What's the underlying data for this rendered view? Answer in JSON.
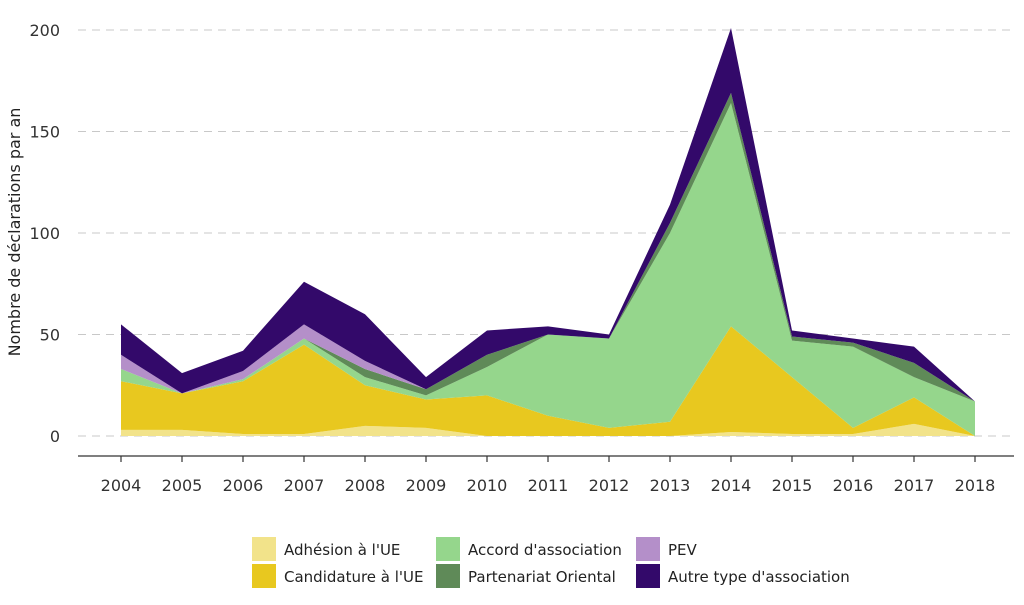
{
  "chart_data": {
    "type": "area",
    "stacked": true,
    "ylabel": "Nombre de déclarations par an",
    "xlabel": "",
    "ylim": [
      0,
      200
    ],
    "yticks": [
      0,
      50,
      100,
      150,
      200
    ],
    "grid": "horizontal-dashed",
    "legend_position": "bottom",
    "x": [
      "2004",
      "2005",
      "2006",
      "2007",
      "2008",
      "2009",
      "2010",
      "2011",
      "2012",
      "2013",
      "2014",
      "2015",
      "2016",
      "2017",
      "2018"
    ],
    "series": [
      {
        "name": "Adhésion à l'UE",
        "color": "#f2e38a",
        "values": [
          3,
          3,
          1,
          1,
          5,
          4,
          0,
          0,
          0,
          0,
          2,
          1,
          1,
          6,
          0
        ]
      },
      {
        "name": "Candidature à l'UE",
        "color": "#e8c81f",
        "values": [
          24,
          18,
          26,
          44,
          20,
          14,
          20,
          10,
          4,
          7,
          52,
          28,
          3,
          13,
          0
        ]
      },
      {
        "name": "Accord d'association",
        "color": "#95d68c",
        "values": [
          6,
          0,
          1,
          3,
          4,
          2,
          14,
          40,
          44,
          93,
          110,
          18,
          40,
          10,
          17
        ]
      },
      {
        "name": "Partenariat Oriental",
        "color": "#5f8a58",
        "values": [
          0,
          0,
          0,
          0,
          4,
          3,
          6,
          0,
          0,
          5,
          5,
          2,
          2,
          7,
          0
        ]
      },
      {
        "name": "PEV",
        "color": "#b48fc9",
        "values": [
          7,
          0,
          4,
          7,
          4,
          0,
          0,
          0,
          0,
          0,
          0,
          0,
          0,
          0,
          0
        ]
      },
      {
        "name": "Autre type d'association",
        "color": "#33096a",
        "values": [
          15,
          10,
          10,
          21,
          23,
          6,
          12,
          4,
          2,
          9,
          32,
          3,
          2,
          8,
          0
        ]
      }
    ]
  }
}
